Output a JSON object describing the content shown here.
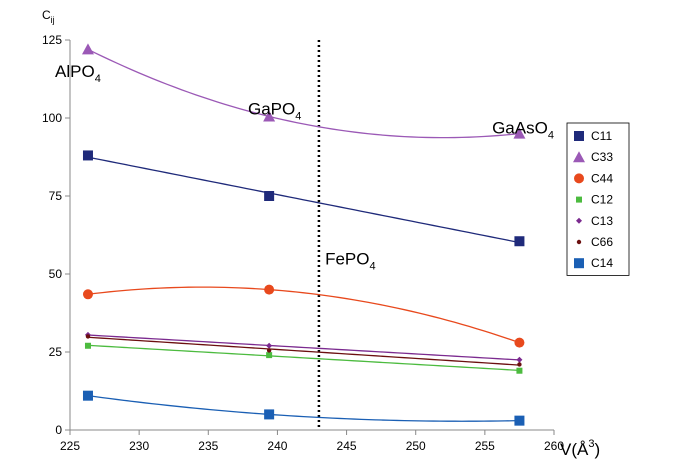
{
  "chart_data": {
    "type": "scatter",
    "ylabel": "C",
    "ylabel_sub": "ij",
    "xlabel": "V(Å",
    "xlabel_sup": "3",
    "xlabel_close": ")",
    "xlim": [
      225,
      260
    ],
    "ylim": [
      0,
      125
    ],
    "xticks": [
      225,
      230,
      235,
      240,
      245,
      250,
      255,
      260
    ],
    "yticks": [
      0,
      25,
      50,
      75,
      100,
      125
    ],
    "grid": false,
    "legend_position": "right",
    "vline": {
      "x": 243,
      "style": "dotted"
    },
    "annotations": [
      {
        "text": "AlPO",
        "sub": "4",
        "x": 226.3,
        "y": 115
      },
      {
        "text": "GaPO",
        "sub": "4",
        "x": 239.5,
        "y": 103
      },
      {
        "text": "GaAsO",
        "sub": "4",
        "x": 257.5,
        "y": 97
      },
      {
        "text": "FePO",
        "sub": "4",
        "x": 243.3,
        "y": 55
      }
    ],
    "x": [
      226.3,
      239.4,
      257.5
    ],
    "series": [
      {
        "name": "C11",
        "values": [
          88,
          75,
          60.5
        ],
        "color": "#1f2a7a",
        "marker": "square",
        "fit": "linear"
      },
      {
        "name": "C33",
        "values": [
          122,
          100.5,
          95
        ],
        "color": "#9b59b6",
        "marker": "triangle",
        "fit": "quadratic"
      },
      {
        "name": "C44",
        "values": [
          43.5,
          45,
          28
        ],
        "color": "#e8491d",
        "marker": "circle",
        "fit": "quadratic"
      },
      {
        "name": "C12",
        "values": [
          27,
          24,
          19
        ],
        "color": "#4cbb3f",
        "marker": "small-square",
        "fit": "linear"
      },
      {
        "name": "C13",
        "values": [
          30.5,
          27,
          22.5
        ],
        "color": "#7b2a8f",
        "marker": "diamond",
        "fit": "linear"
      },
      {
        "name": "C66",
        "values": [
          30,
          25.5,
          21
        ],
        "color": "#6b0f0f",
        "marker": "dot",
        "fit": "linear"
      },
      {
        "name": "C14",
        "values": [
          11,
          5,
          3
        ],
        "color": "#1a5fb4",
        "marker": "square",
        "fit": "quadratic"
      }
    ]
  }
}
